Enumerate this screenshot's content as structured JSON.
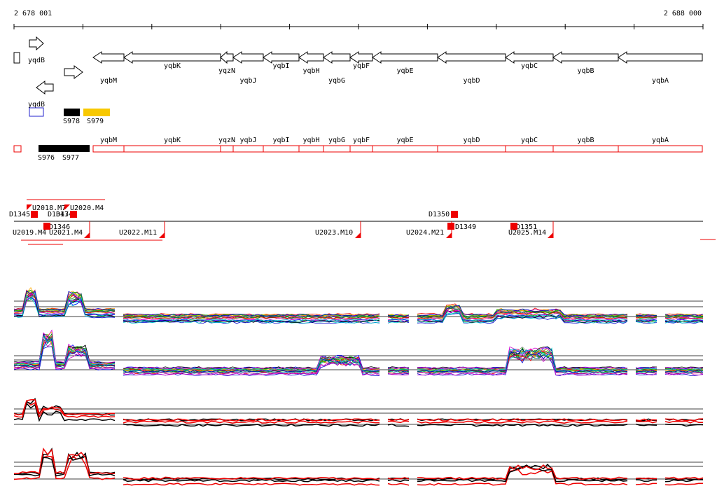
{
  "scale": {
    "start": "2 678 001",
    "end": "2 688 000"
  },
  "small_genes": [
    "yqdB",
    "yqdB"
  ],
  "genes": [
    "yqbM",
    "yqbK",
    "yqzN",
    "yqbJ",
    "yqbI",
    "yqbH",
    "yqbG",
    "yqbF",
    "yqbE",
    "yqbD",
    "yqbC",
    "yqbB",
    "yqbA"
  ],
  "features": [
    "S978",
    "S979",
    "S976",
    "S977"
  ],
  "operon_genes": [
    "yqbM",
    "yqbK",
    "yqzN",
    "yqbJ",
    "yqbI",
    "yqbH",
    "yqbG",
    "yqbF",
    "yqbE",
    "yqbD",
    "yqbC",
    "yqbB",
    "yqbA"
  ],
  "segments": [
    "U2018.M7",
    "U2020.M4",
    "D1345",
    "D1347",
    "D1348",
    "D1350",
    "D1346",
    "D1349",
    "D1351",
    "U2019.M4",
    "U2021.M4",
    "U2022.M11",
    "U2023.M10",
    "U2024.M21",
    "U2025.M14"
  ]
}
